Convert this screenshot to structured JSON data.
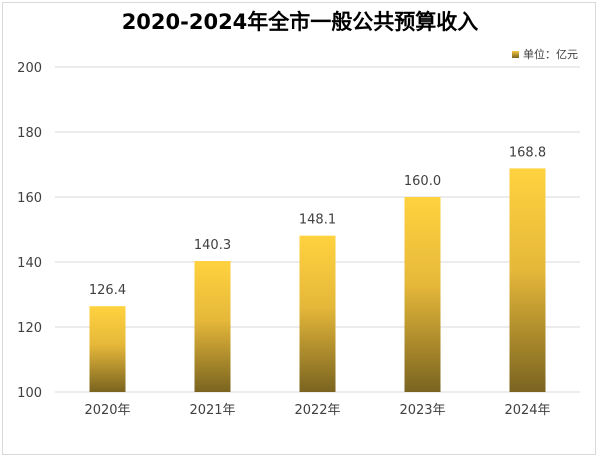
{
  "chart_data": {
    "type": "bar",
    "title": "2020-2024年全市一般公共预算收入",
    "unit_label": "单位：亿元",
    "categories": [
      "2020年",
      "2021年",
      "2022年",
      "2023年",
      "2024年"
    ],
    "values": [
      126.4,
      140.3,
      148.1,
      160.0,
      168.8
    ],
    "value_labels": [
      "126.4",
      "140.3",
      "148.1",
      "160.0",
      "168.8"
    ],
    "ylim": [
      100,
      200
    ],
    "yticks": [
      "100",
      "120",
      "140",
      "160",
      "180",
      "200"
    ],
    "grid": true,
    "legend_position": "top-right"
  },
  "colors": {
    "bar_top": "#ffd23f",
    "bar_bottom": "#7a6420",
    "grid": "#d9d9d9"
  }
}
